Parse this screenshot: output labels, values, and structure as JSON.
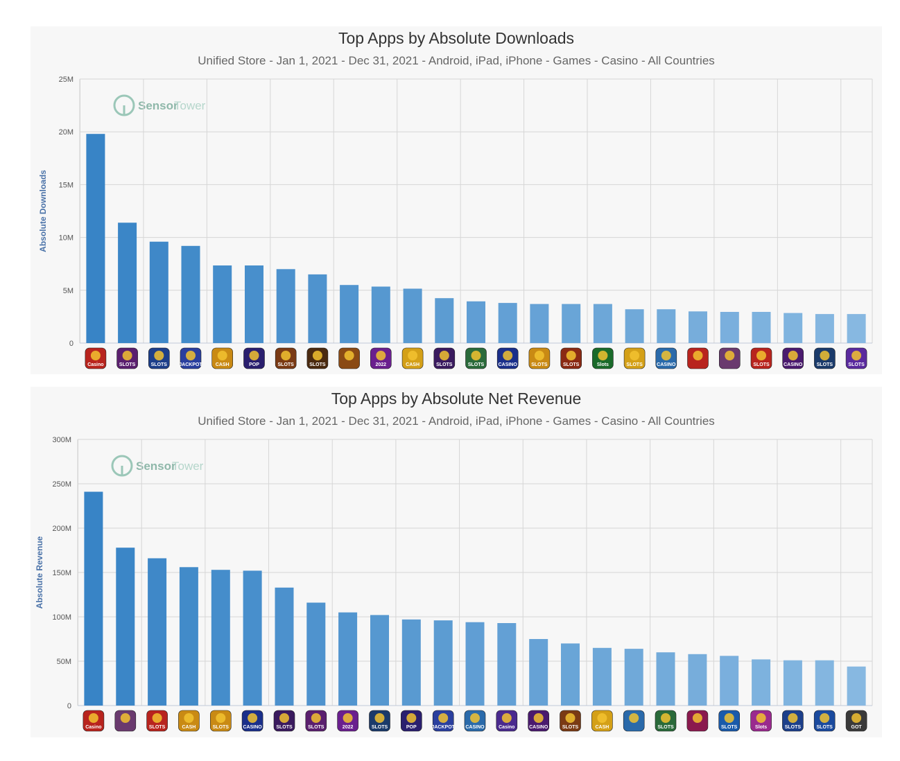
{
  "charts": [
    {
      "title": "Top Apps by Absolute Downloads",
      "subtitle": "Unified Store - Jan 1, 2021 - Dec 31, 2021 - Android, iPad, iPhone - Games - Casino - All Countries",
      "watermark": {
        "brand_a": "Sensor",
        "brand_b": "Tower"
      },
      "app_icons": [
        {
          "label": "Casino",
          "color": "#b8241e"
        },
        {
          "label": "SLOTS",
          "color": "#5a1f6e"
        },
        {
          "label": "SLOTS",
          "color": "#1d3f8a"
        },
        {
          "label": "JACKPOT",
          "color": "#2a3f9e"
        },
        {
          "label": "CASH",
          "color": "#c98a14"
        },
        {
          "label": "POP",
          "color": "#2a1f6e"
        },
        {
          "label": "SLOTS",
          "color": "#7a3a14"
        },
        {
          "label": "SLOTS",
          "color": "#4a2a10"
        },
        {
          "label": "",
          "color": "#8a4a14"
        },
        {
          "label": "2022",
          "color": "#6a1f8e"
        },
        {
          "label": "CASH",
          "color": "#d4a017"
        },
        {
          "label": "SLOTS",
          "color": "#3a1a5e"
        },
        {
          "label": "SLOTS",
          "color": "#2a6a3a"
        },
        {
          "label": "CASINO",
          "color": "#1a2f8a"
        },
        {
          "label": "SLOTS",
          "color": "#c98a14"
        },
        {
          "label": "SLOTS",
          "color": "#8a2a14"
        },
        {
          "label": "Slots",
          "color": "#1a6a2a"
        },
        {
          "label": "SLOTS",
          "color": "#d4a017"
        },
        {
          "label": "CASINO",
          "color": "#2a6aaa"
        },
        {
          "label": "",
          "color": "#b8241e"
        },
        {
          "label": "",
          "color": "#6a3a6e"
        },
        {
          "label": "SLOTS",
          "color": "#b8241e"
        },
        {
          "label": "CASINO",
          "color": "#4a1a6e"
        },
        {
          "label": "SLOTS",
          "color": "#1a3a6a"
        },
        {
          "label": "SLOTS",
          "color": "#5a2a9e"
        }
      ],
      "chart_data": {
        "type": "bar",
        "ylabel": "Absolute Downloads",
        "ylim": [
          0,
          25000000
        ],
        "yticks": [
          0,
          5000000,
          10000000,
          15000000,
          20000000,
          25000000
        ],
        "ytick_labels": [
          "0",
          "5M",
          "10M",
          "15M",
          "20M",
          "25M"
        ],
        "grid": true,
        "values": [
          19800000,
          11400000,
          9600000,
          9200000,
          7350000,
          7350000,
          7000000,
          6500000,
          5500000,
          5350000,
          5150000,
          4250000,
          3950000,
          3800000,
          3700000,
          3700000,
          3700000,
          3200000,
          3200000,
          3000000,
          2950000,
          2950000,
          2850000,
          2750000,
          2750000
        ]
      }
    },
    {
      "title": "Top Apps by Absolute Net Revenue",
      "subtitle": "Unified Store - Jan 1, 2021 - Dec 31, 2021 - Android, iPad, iPhone - Games - Casino - All Countries",
      "watermark": {
        "brand_a": "Sensor",
        "brand_b": "Tower"
      },
      "app_icons": [
        {
          "label": "Casino",
          "color": "#b8241e"
        },
        {
          "label": "",
          "color": "#6a3a6e"
        },
        {
          "label": "SLOTS",
          "color": "#b8241e"
        },
        {
          "label": "CASH",
          "color": "#c98a14"
        },
        {
          "label": "SLOTS",
          "color": "#c98a14"
        },
        {
          "label": "CASINO",
          "color": "#1a2f8a"
        },
        {
          "label": "SLOTS",
          "color": "#3a1a5e"
        },
        {
          "label": "SLOTS",
          "color": "#5a1f6e"
        },
        {
          "label": "2022",
          "color": "#6a1f8e"
        },
        {
          "label": "SLOTS",
          "color": "#1a3a6a"
        },
        {
          "label": "POP",
          "color": "#2a1f6e"
        },
        {
          "label": "JACKPOT",
          "color": "#2a3f9e"
        },
        {
          "label": "CASINO",
          "color": "#2a6aaa"
        },
        {
          "label": "Casino",
          "color": "#4a2a8e"
        },
        {
          "label": "CASINO",
          "color": "#4a1a6e"
        },
        {
          "label": "SLOTS",
          "color": "#7a3a14"
        },
        {
          "label": "CASH",
          "color": "#d4a017"
        },
        {
          "label": "",
          "color": "#2a6aaa"
        },
        {
          "label": "SLOTS",
          "color": "#2a6a3a"
        },
        {
          "label": "",
          "color": "#8a1a4e"
        },
        {
          "label": "SLOTS",
          "color": "#1a5aaa"
        },
        {
          "label": "Slots",
          "color": "#9a2a8e"
        },
        {
          "label": "SLOTS",
          "color": "#1d3f8a"
        },
        {
          "label": "SLOTS",
          "color": "#1a4a9e"
        },
        {
          "label": "GOT",
          "color": "#3a3a3a"
        }
      ],
      "chart_data": {
        "type": "bar",
        "ylabel": "Absolute Revenue",
        "ylim": [
          0,
          300000000
        ],
        "yticks": [
          0,
          50000000,
          100000000,
          150000000,
          200000000,
          250000000,
          300000000
        ],
        "ytick_labels": [
          "0",
          "50M",
          "100M",
          "150M",
          "200M",
          "250M",
          "300M"
        ],
        "grid": true,
        "values": [
          241000000,
          178000000,
          166000000,
          156000000,
          153000000,
          152000000,
          133000000,
          116000000,
          105000000,
          102000000,
          97000000,
          96000000,
          94000000,
          93000000,
          75000000,
          70000000,
          65000000,
          64000000,
          60000000,
          58000000,
          56000000,
          52000000,
          51000000,
          51000000,
          44000000
        ]
      }
    }
  ]
}
